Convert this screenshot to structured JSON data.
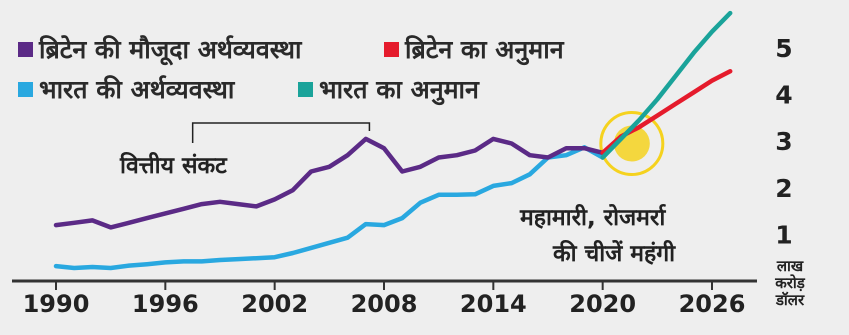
{
  "chart_data": {
    "type": "line",
    "xlabel": "",
    "ylabel": "लाख करोड़ डॉलर",
    "xlim": [
      1988,
      2028
    ],
    "ylim": [
      0,
      5.8
    ],
    "x_ticks": [
      1990,
      1996,
      2002,
      2008,
      2014,
      2020,
      2026
    ],
    "y_ticks": [
      1,
      2,
      3,
      4,
      5
    ],
    "legend": "top-left",
    "grid": false,
    "colors": {
      "uk_actual": "#5b2a86",
      "uk_projection": "#e51b2c",
      "india_actual": "#29a8e0",
      "india_projection": "#1aa39a",
      "highlight": "#f5d21e",
      "axis": "#333333"
    },
    "series": [
      {
        "name": "ब्रिटेन की मौजूदा अर्थव्यवस्था",
        "key": "uk_actual",
        "x": [
          1990,
          1991,
          1992,
          1993,
          1994,
          1995,
          1996,
          1997,
          1998,
          1999,
          2000,
          2001,
          2002,
          2003,
          2004,
          2005,
          2006,
          2007,
          2008,
          2009,
          2010,
          2011,
          2012,
          2013,
          2014,
          2015,
          2016,
          2017,
          2018,
          2019,
          2020
        ],
        "y": [
          1.2,
          1.25,
          1.3,
          1.15,
          1.25,
          1.35,
          1.45,
          1.55,
          1.65,
          1.7,
          1.65,
          1.6,
          1.75,
          1.95,
          2.35,
          2.45,
          2.7,
          3.05,
          2.85,
          2.35,
          2.45,
          2.65,
          2.7,
          2.8,
          3.05,
          2.95,
          2.7,
          2.65,
          2.85,
          2.85,
          2.75
        ]
      },
      {
        "name": "ब्रिटेन का अनुमान",
        "key": "uk_projection",
        "x": [
          2020,
          2021,
          2022,
          2023,
          2024,
          2025,
          2026,
          2027
        ],
        "y": [
          2.75,
          3.1,
          3.3,
          3.55,
          3.8,
          4.05,
          4.3,
          4.5
        ]
      },
      {
        "name": "भारत की अर्थव्यवस्था",
        "key": "india_actual",
        "x": [
          1990,
          1991,
          1992,
          1993,
          1994,
          1995,
          1996,
          1997,
          1998,
          1999,
          2000,
          2001,
          2002,
          2003,
          2004,
          2005,
          2006,
          2007,
          2008,
          2009,
          2010,
          2011,
          2012,
          2013,
          2014,
          2015,
          2016,
          2017,
          2018,
          2019,
          2020
        ],
        "y": [
          0.32,
          0.28,
          0.3,
          0.28,
          0.33,
          0.36,
          0.4,
          0.42,
          0.42,
          0.45,
          0.47,
          0.49,
          0.51,
          0.6,
          0.71,
          0.82,
          0.93,
          1.22,
          1.2,
          1.35,
          1.68,
          1.85,
          1.85,
          1.86,
          2.04,
          2.1,
          2.29,
          2.65,
          2.7,
          2.87,
          2.65
        ]
      },
      {
        "name": "भारत का अनुमान",
        "key": "india_projection",
        "x": [
          2020,
          2021,
          2022,
          2023,
          2024,
          2025,
          2026,
          2027
        ],
        "y": [
          2.65,
          3.05,
          3.45,
          3.9,
          4.4,
          4.9,
          5.35,
          5.75
        ]
      }
    ],
    "annotations": [
      {
        "text": "वित्तीय संकट",
        "x": 2007.5
      },
      {
        "text": "महामारी, रोजमर्रा",
        "x": 2020
      },
      {
        "text": "की चीजें महंगी",
        "x": 2020
      }
    ]
  }
}
